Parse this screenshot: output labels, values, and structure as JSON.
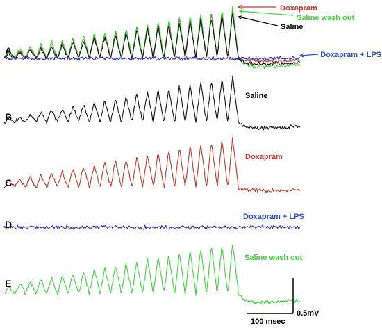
{
  "chart_data": {
    "type": "line",
    "time_ms": 250,
    "panels": [
      {
        "letter": "A",
        "traces": [
          "doxapram",
          "saline_wash_out",
          "saline",
          "doxapram_lps"
        ]
      },
      {
        "letter": "B",
        "traces": [
          "saline"
        ]
      },
      {
        "letter": "C",
        "traces": [
          "doxapram"
        ]
      },
      {
        "letter": "D",
        "traces": [
          "doxapram_lps"
        ]
      },
      {
        "letter": "E",
        "traces": [
          "saline_wash_out"
        ]
      }
    ],
    "series": [
      {
        "key": "saline",
        "name": "Saline",
        "color": "#111111",
        "n_bursts": 22,
        "amp_start": 0.05,
        "amp_end": 0.55,
        "tail": -0.08
      },
      {
        "key": "doxapram",
        "name": "Doxapram",
        "color": "#b83a2a",
        "n_bursts": 22,
        "amp_start": 0.08,
        "amp_end": 0.6,
        "tail": -0.04
      },
      {
        "key": "doxapram_lps",
        "name": "Doxapram + LPS",
        "color": "#2b2bbf",
        "n_bursts": 0,
        "amp_start": 0.03,
        "amp_end": 0.03,
        "tail": 0.0
      },
      {
        "key": "saline_wash_out",
        "name": "Saline wash out",
        "color": "#3fd23f",
        "n_bursts": 22,
        "amp_start": 0.1,
        "amp_end": 0.62,
        "tail": -0.12
      }
    ],
    "legend_a": [
      {
        "key": "doxapram",
        "label": "Doxapram",
        "color": "#d93030"
      },
      {
        "key": "saline_wash_out",
        "label": "Saline wash out",
        "color": "#3fd23f"
      },
      {
        "key": "saline",
        "label": "Saline",
        "color": "#000000"
      },
      {
        "key": "doxapram_lps",
        "label": "Doxapram + LPS",
        "color": "#2b4fd0"
      }
    ],
    "panel_labels": [
      {
        "panel": "B",
        "label": "Saline",
        "color": "#000000"
      },
      {
        "panel": "C",
        "label": "Doxapram",
        "color": "#d93030"
      },
      {
        "panel": "D",
        "label": "Doxapram + LPS",
        "color": "#2b4fd0"
      },
      {
        "panel": "E",
        "label": "Saline wash out",
        "color": "#3fd23f"
      }
    ],
    "scale_bar": {
      "time_label": "100 msec",
      "time_ms": 100,
      "voltage_label": "0.5mV",
      "voltage_mv": 0.5
    }
  }
}
